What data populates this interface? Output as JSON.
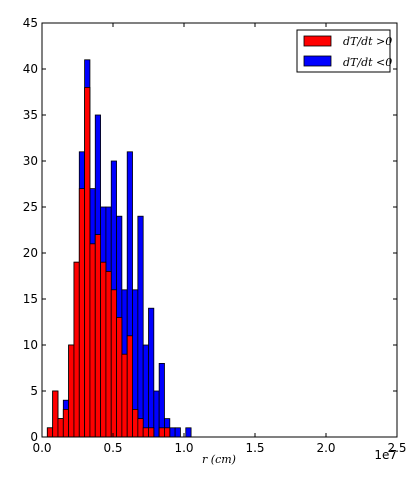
{
  "chart_data": {
    "type": "bar",
    "xlabel": "r  (cm)",
    "xlim": [
      0,
      25000000
    ],
    "ylim": [
      0,
      45
    ],
    "x_scale_label": "1e7",
    "x_ticks": [
      0,
      5000000,
      10000000,
      15000000,
      20000000,
      25000000
    ],
    "x_tick_labels": [
      "0.0",
      "0.5",
      "1.0",
      "1.5",
      "2.0",
      "2.5"
    ],
    "y_ticks": [
      0,
      5,
      10,
      15,
      20,
      25,
      30,
      35,
      40,
      45
    ],
    "y_tick_labels": [
      "0",
      "5",
      "10",
      "15",
      "20",
      "25",
      "30",
      "35",
      "40",
      "45"
    ],
    "bin_width": 375000,
    "legend_position": "top-right",
    "grid": false,
    "series": [
      {
        "name": "dT/dt >0",
        "color": "#ff0000",
        "bin_starts": [
          375000,
          750000,
          1125000,
          1500000,
          1875000,
          2250000,
          2625000,
          3000000,
          3375000,
          3750000,
          4125000,
          4500000,
          4875000,
          5250000,
          5625000,
          6000000,
          6375000,
          6750000,
          7125000,
          7500000,
          7875000,
          8250000,
          8625000
        ],
        "values": [
          1,
          5,
          2,
          3,
          10,
          19,
          27,
          38,
          21,
          22,
          19,
          18,
          16,
          13,
          9,
          11,
          3,
          2,
          1,
          1,
          0,
          1,
          1
        ]
      },
      {
        "name": "dT/dt <0",
        "color": "#0000ff",
        "bin_starts": [
          375000,
          750000,
          1125000,
          1500000,
          1875000,
          2250000,
          2625000,
          3000000,
          3375000,
          3750000,
          4125000,
          4500000,
          4875000,
          5250000,
          5625000,
          6000000,
          6375000,
          6750000,
          7125000,
          7500000,
          7875000,
          8250000,
          8625000,
          9000000,
          9375000,
          9750000,
          10125000,
          10500000,
          10875000
        ],
        "values": [
          1,
          5,
          2,
          4,
          10,
          19,
          31,
          41,
          27,
          35,
          25,
          25,
          30,
          24,
          16,
          31,
          16,
          24,
          10,
          14,
          5,
          8,
          2,
          1,
          1,
          0,
          1,
          0,
          0
        ]
      }
    ]
  }
}
